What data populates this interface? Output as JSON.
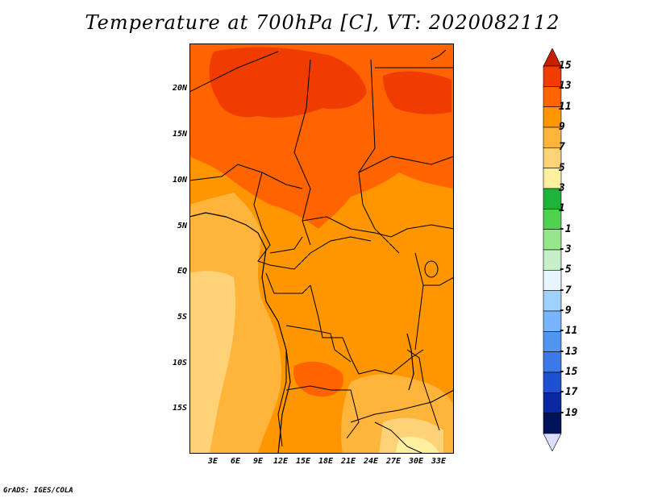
{
  "title": "Temperature at 700hPa [C], VT: 2020082112",
  "credit": "GrADS: IGES/COLA",
  "map": {
    "lat_labels": [
      "20N",
      "15N",
      "10N",
      "5N",
      "EQ",
      "5S",
      "10S",
      "15S"
    ],
    "lon_labels": [
      "3E",
      "6E",
      "9E",
      "12E",
      "15E",
      "18E",
      "21E",
      "24E",
      "27E",
      "30E",
      "33E"
    ]
  },
  "colorbar": {
    "labels": [
      "15",
      "13",
      "11",
      "9",
      "7",
      "5",
      "3",
      "1",
      "-1",
      "-3",
      "-5",
      "-7",
      "-9",
      "-11",
      "-13",
      "-15",
      "-17",
      "-19"
    ],
    "colors": [
      "#c81e00",
      "#f03c00",
      "#ff6400",
      "#ff9600",
      "#ffb43c",
      "#ffd278",
      "#fff0a0",
      "#1eb43c",
      "#50d250",
      "#96e68c",
      "#c8f0c8",
      "#e6f5ff",
      "#a0d2ff",
      "#78b4ff",
      "#5096f0",
      "#3c78e6",
      "#1e50d2",
      "#0a28a0",
      "#00125a",
      "#ddddff"
    ]
  }
}
